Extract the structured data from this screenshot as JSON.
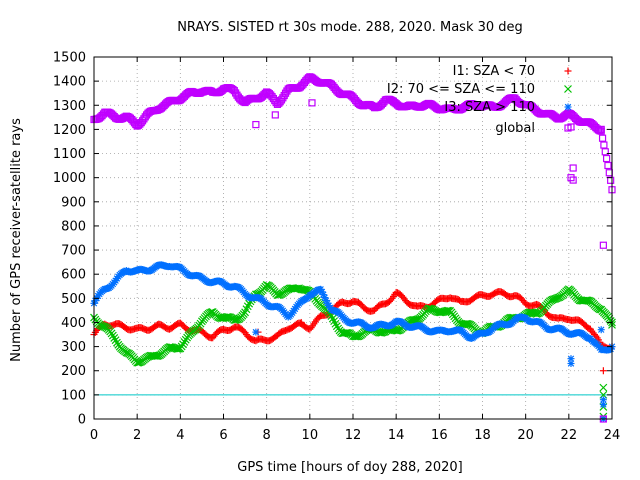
{
  "chart_data": {
    "type": "scatter",
    "title": "NRAYS. SISTED rt 30s mode. 288, 2020. Mask 30 deg",
    "xlabel": "GPS time [hours of doy 288, 2020]",
    "ylabel": "Number of GPS receiver-satellite rays",
    "xlim": [
      0,
      24
    ],
    "ylim": [
      0,
      1500
    ],
    "xticks": [
      "0",
      "2",
      "4",
      "6",
      "8",
      "10",
      "12",
      "14",
      "16",
      "18",
      "20",
      "22",
      "24"
    ],
    "yticks": [
      "0",
      "100",
      "200",
      "300",
      "400",
      "500",
      "600",
      "700",
      "800",
      "900",
      "1000",
      "1100",
      "1200",
      "1300",
      "1400",
      "1500"
    ],
    "grid": true,
    "legend_position": "top-right",
    "reference_line": {
      "y": 100,
      "color": "#00c8c8"
    },
    "series": [
      {
        "name": "I1: SZA < 70",
        "marker": "+",
        "color": "#ff0000",
        "x": [
          0,
          0.5,
          1,
          1.5,
          2,
          2.5,
          3,
          3.5,
          4,
          4.5,
          5,
          5.5,
          6,
          6.5,
          7,
          7.5,
          8,
          8.5,
          9,
          9.5,
          10,
          10.5,
          11,
          11.5,
          12,
          12.5,
          13,
          13.5,
          14,
          14.5,
          15,
          15.5,
          16,
          16.5,
          17,
          17.5,
          18,
          18.5,
          19,
          19.5,
          20,
          20.5,
          21,
          21.5,
          22,
          22.5,
          23,
          23.5,
          24
        ],
        "y": [
          350,
          395,
          390,
          380,
          370,
          375,
          385,
          380,
          390,
          370,
          360,
          340,
          370,
          380,
          360,
          320,
          330,
          340,
          380,
          390,
          380,
          420,
          450,
          480,
          490,
          460,
          450,
          480,
          520,
          490,
          460,
          470,
          490,
          510,
          480,
          500,
          510,
          520,
          520,
          510,
          480,
          470,
          440,
          410,
          420,
          400,
          380,
          300,
          300
        ]
      },
      {
        "name": "I2: 70 <= SZA <= 110",
        "marker": "x",
        "color": "#00c000",
        "x": [
          0,
          0.5,
          1,
          1.5,
          2,
          2.5,
          3,
          3.5,
          4,
          4.5,
          5,
          5.5,
          6,
          6.5,
          7,
          7.5,
          8,
          8.5,
          9,
          9.5,
          10,
          10.5,
          11,
          11.5,
          12,
          12.5,
          13,
          13.5,
          14,
          14.5,
          15,
          15.5,
          16,
          16.5,
          17,
          17.5,
          18,
          18.5,
          19,
          19.5,
          20,
          20.5,
          21,
          21.5,
          22,
          22.5,
          23,
          23.5,
          24
        ],
        "y": [
          420,
          380,
          330,
          270,
          240,
          250,
          270,
          290,
          300,
          350,
          410,
          440,
          420,
          410,
          440,
          520,
          550,
          520,
          530,
          550,
          520,
          480,
          420,
          360,
          340,
          360,
          370,
          360,
          370,
          390,
          420,
          450,
          450,
          440,
          400,
          380,
          360,
          380,
          400,
          420,
          430,
          440,
          470,
          510,
          530,
          500,
          480,
          460,
          390
        ]
      },
      {
        "name": "I3: SZA > 110",
        "marker": "*",
        "color": "#0070ff",
        "x": [
          0,
          0.5,
          1,
          1.5,
          2,
          2.5,
          3,
          3.5,
          4,
          4.5,
          5,
          5.5,
          6,
          6.5,
          7,
          7.5,
          8,
          8.5,
          9,
          9.5,
          10,
          10.5,
          11,
          11.5,
          12,
          12.5,
          13,
          13.5,
          14,
          14.5,
          15,
          15.5,
          16,
          16.5,
          17,
          17.5,
          18,
          18.5,
          19,
          19.5,
          20,
          20.5,
          21,
          21.5,
          22,
          22.5,
          23,
          23.5,
          24
        ],
        "y": [
          480,
          540,
          570,
          620,
          610,
          620,
          630,
          640,
          620,
          600,
          580,
          570,
          560,
          550,
          520,
          500,
          480,
          460,
          430,
          470,
          520,
          530,
          460,
          420,
          400,
          390,
          380,
          390,
          400,
          390,
          380,
          370,
          360,
          370,
          360,
          340,
          350,
          380,
          390,
          410,
          420,
          400,
          380,
          370,
          360,
          350,
          340,
          280,
          300
        ]
      },
      {
        "name": "global",
        "marker": "square",
        "color": "#c000ff",
        "x": [
          0,
          0.5,
          1,
          1.5,
          2,
          2.5,
          3,
          3.5,
          4,
          4.5,
          5,
          5.5,
          6,
          6.5,
          7,
          7.5,
          8,
          8.5,
          9,
          9.5,
          10,
          10.5,
          11,
          11.5,
          12,
          12.5,
          13,
          13.5,
          14,
          14.5,
          15,
          15.5,
          16,
          16.5,
          17,
          17.5,
          18,
          18.5,
          19,
          19.5,
          20,
          20.5,
          21,
          21.5,
          22,
          22.5,
          23,
          23.5,
          24
        ],
        "y": [
          1240,
          1270,
          1250,
          1250,
          1220,
          1260,
          1290,
          1310,
          1330,
          1350,
          1360,
          1350,
          1370,
          1360,
          1310,
          1330,
          1350,
          1310,
          1360,
          1380,
          1410,
          1400,
          1380,
          1350,
          1330,
          1300,
          1290,
          1320,
          1310,
          1290,
          1300,
          1300,
          1290,
          1280,
          1290,
          1300,
          1300,
          1290,
          1310,
          1330,
          1300,
          1280,
          1260,
          1250,
          1260,
          1240,
          1220,
          1200,
          950
        ]
      }
    ],
    "outliers": {
      "I1: SZA < 70": [
        [
          7.6,
          360
        ],
        [
          9.6,
          400
        ],
        [
          23.6,
          200
        ]
      ],
      "I2: 70 <= SZA <= 110": [
        [
          23.6,
          130
        ],
        [
          23.6,
          100
        ],
        [
          23.6,
          50
        ],
        [
          23.6,
          10
        ],
        [
          24,
          400
        ]
      ],
      "I3: SZA > 110": [
        [
          7.5,
          360
        ],
        [
          22.1,
          250
        ],
        [
          22.1,
          230
        ],
        [
          23.6,
          80
        ],
        [
          23.6,
          60
        ],
        [
          23.6,
          0
        ],
        [
          23.5,
          370
        ]
      ],
      "global": [
        [
          7.5,
          1220
        ],
        [
          8.4,
          1260
        ],
        [
          10.1,
          1310
        ],
        [
          22.1,
          1210
        ],
        [
          22.2,
          1040
        ],
        [
          22.1,
          1000
        ],
        [
          22.2,
          990
        ],
        [
          23.6,
          720
        ],
        [
          23.6,
          0
        ],
        [
          23.5,
          1200
        ]
      ]
    }
  }
}
